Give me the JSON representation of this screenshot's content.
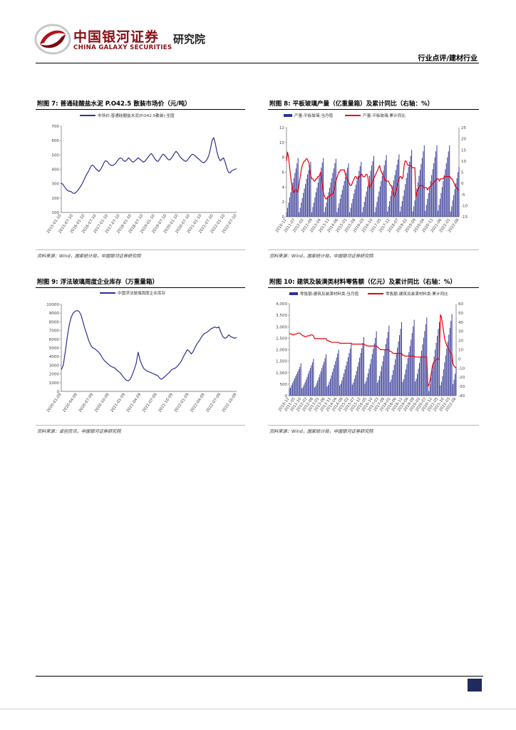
{
  "header": {
    "logo_cn": "中国银河证券",
    "logo_en": "CHINA GALAXY SECURITIES",
    "logo_sub": "研究院",
    "sector": "行业点评/建材行业"
  },
  "figures": [
    {
      "title": "附图 7: 普通硅酸盐水泥 P.O42.5 散装市场价（元/吨）",
      "legend": [
        "市场价:普通硅酸盐水泥(P.O42.5散装):全国"
      ],
      "source": "资料来源：Wind，国家统计局，中国银河证券研究院"
    },
    {
      "title": "附图 8: 平板玻璃产量（亿重量箱）及累计同比（右轴：%）",
      "legend": [
        "产量:平板玻璃:当月值",
        "产量:平板玻璃:累计同比"
      ],
      "source": "资料来源：Wind，国家统计局，中国银河证券研究院"
    },
    {
      "title": "附图 9: 浮法玻璃周度企业库存（万重量箱）",
      "legend": [
        "中国浮法玻璃周度企业库存"
      ],
      "source": "资料来源：卓创资讯，中国银河证券研究院"
    },
    {
      "title": "附图 10: 建筑及装潢类材料零售额（亿元）及累计同比（右轴：%）",
      "legend": [
        "零售额:建筑及装潢材料类:当月值",
        "零售额:建筑及装潢材料类:累计同比"
      ],
      "source": "资料来源：Wind，国家统计局，中国银河证券研究院"
    }
  ],
  "chart_data": [
    {
      "type": "line",
      "title": "",
      "x_ticks": [
        "2015-01-10",
        "2015-07-10",
        "2016-01-10",
        "2016-07-10",
        "2017-01-10",
        "2017-07-10",
        "2018-01-10",
        "2018-07-10",
        "2019-01-10",
        "2019-07-10",
        "2020-01-10",
        "2020-07-10",
        "2021-01-10",
        "2021-07-10",
        "2022-01-10",
        "2022-07-10"
      ],
      "ylim": [
        100,
        700
      ],
      "y_ticks": [
        "100",
        "200",
        "300",
        "400",
        "500",
        "600",
        "700"
      ],
      "series": [
        {
          "name": "市场价:普通硅酸盐水泥(P.O42.5散装):全国",
          "color": "#2e3192",
          "values": [
            305,
            295,
            278,
            262,
            250,
            248,
            245,
            235,
            232,
            240,
            252,
            268,
            285,
            305,
            330,
            355,
            375,
            395,
            420,
            430,
            420,
            405,
            395,
            385,
            400,
            420,
            445,
            460,
            455,
            440,
            430,
            425,
            430,
            440,
            455,
            470,
            480,
            475,
            460,
            455,
            465,
            480,
            470,
            455,
            450,
            460,
            470,
            480,
            470,
            460,
            450,
            455,
            470,
            485,
            500,
            510,
            495,
            475,
            460,
            455,
            470,
            490,
            505,
            500,
            485,
            470,
            465,
            475,
            490,
            510,
            525,
            515,
            495,
            480,
            470,
            460,
            455,
            465,
            480,
            495,
            505,
            500,
            490,
            480,
            470,
            460,
            450,
            445,
            455,
            470,
            495,
            540,
            600,
            620,
            580,
            520,
            480,
            460,
            470,
            480,
            450,
            410,
            380,
            375,
            390,
            395,
            400,
            405
          ]
        }
      ]
    },
    {
      "type": "bar",
      "title": "",
      "x_ticks": [
        "2010-12",
        "2011-07",
        "2012-02",
        "2012-09",
        "2013-04",
        "2013-11",
        "2014-06",
        "2015-01",
        "2015-08",
        "2016-03",
        "2016-10",
        "2017-05",
        "2017-12",
        "2018-07",
        "2019-02",
        "2019-09",
        "2020-04",
        "2020-11",
        "2021-06",
        "2022-01",
        "2022-08"
      ],
      "ylim": [
        0,
        12
      ],
      "y_ticks": [
        "0",
        "2",
        "4",
        "6",
        "8",
        "10",
        "12"
      ],
      "y2lim": [
        -15,
        25
      ],
      "y2_ticks": [
        "-15",
        "-10",
        "-5",
        "0",
        "5",
        "10",
        "15",
        "20",
        "25"
      ],
      "series": [
        {
          "name": "产量:平板玻璃:当月值",
          "color": "#2e3192",
          "axis": "left",
          "values": [
            0.6,
            1.2,
            1.9,
            2.6,
            3.3,
            4.0,
            4.6,
            5.2,
            5.9,
            6.5,
            7.2,
            7.9,
            0.6,
            1.2,
            1.9,
            2.5,
            3.2,
            3.8,
            4.4,
            5.1,
            5.7,
            6.3,
            6.9,
            7.4,
            0.6,
            1.3,
            1.9,
            2.6,
            3.3,
            3.9,
            4.6,
            5.3,
            5.9,
            6.6,
            7.3,
            7.9,
            0.6,
            1.3,
            1.9,
            2.6,
            3.3,
            3.9,
            4.6,
            5.2,
            5.9,
            6.5,
            7.2,
            7.8,
            0.6,
            1.2,
            1.8,
            2.4,
            3.0,
            3.6,
            4.2,
            4.8,
            5.4,
            6.0,
            6.6,
            7.2,
            0.6,
            1.2,
            1.8,
            2.4,
            3.1,
            3.7,
            4.3,
            4.9,
            5.5,
            6.2,
            6.8,
            7.4,
            0.6,
            1.3,
            2.0,
            2.7,
            3.4,
            4.1,
            4.8,
            5.5,
            6.2,
            6.9,
            7.5,
            8.2,
            0.6,
            1.3,
            2.0,
            2.7,
            3.4,
            4.1,
            4.8,
            5.5,
            6.2,
            6.9,
            7.6,
            8.3,
            0.7,
            1.4,
            2.1,
            2.8,
            3.5,
            4.2,
            4.9,
            5.6,
            6.3,
            7.0,
            7.7,
            8.4,
            0.7,
            1.4,
            2.1,
            2.8,
            3.6,
            4.4,
            5.2,
            5.9,
            6.7,
            7.4,
            8.2,
            9.0,
            0.7,
            1.4,
            2.2,
            3.0,
            3.8,
            4.6,
            5.5,
            6.3,
            7.1,
            7.9,
            8.8,
            9.6,
            0.8,
            1.6,
            2.4,
            3.2,
            4.0,
            4.8,
            5.6,
            6.4,
            7.2,
            8.0,
            8.8,
            9.6,
            0.8,
            1.6,
            2.4,
            3.2,
            4.0,
            4.8,
            5.6,
            6.4,
            7.2,
            8.0,
            8.8,
            9.6,
            0.7,
            1.4,
            2.2,
            2.9,
            3.7,
            4.5,
            5.2,
            6.0,
            6.7
          ]
        },
        {
          "name": "产量:平板玻璃:累计同比",
          "color": "#e8000b",
          "axis": "right",
          "values": [
            10,
            14,
            12,
            8,
            4,
            0,
            -2,
            -4,
            -4,
            -3,
            -3,
            -4,
            -3,
            0,
            3,
            6,
            8,
            9,
            10,
            10,
            11,
            11,
            10,
            9,
            5,
            3,
            2,
            2,
            1,
            1,
            2,
            2,
            3,
            3,
            4,
            5,
            2,
            -2,
            -5,
            -6,
            -7,
            -7,
            -6,
            -6,
            -6,
            -5,
            -5,
            -5,
            -4,
            -2,
            0,
            2,
            3,
            5,
            5,
            6,
            6,
            6,
            6,
            6,
            4,
            3,
            2,
            1,
            0,
            -1,
            -1,
            0,
            1,
            2,
            3,
            3,
            2,
            2,
            3,
            3,
            4,
            4,
            3,
            3,
            3,
            4,
            4,
            3,
            -1,
            -2,
            -1,
            0,
            1,
            2,
            3,
            4,
            5,
            6,
            7,
            8,
            6,
            5,
            4,
            3,
            2,
            1,
            1,
            1,
            1,
            0,
            -1,
            -1,
            -3,
            -5,
            -6,
            -5,
            -3,
            -1,
            1,
            2,
            3,
            3,
            2,
            3,
            8,
            10,
            10,
            9,
            8,
            8,
            8,
            8,
            7,
            7,
            7,
            7,
            -6,
            -4,
            -3,
            -2,
            -1,
            -1,
            -1,
            -1,
            -2,
            -2,
            -2,
            -2,
            -3,
            -2,
            -2,
            -1,
            -1,
            0,
            0,
            1,
            1,
            2,
            2,
            2,
            1,
            2,
            2,
            2,
            2,
            3,
            3,
            3,
            3,
            3,
            3,
            3,
            2,
            2,
            1,
            0,
            -1,
            -2,
            -2,
            -3,
            -3
          ]
        }
      ]
    },
    {
      "type": "line",
      "title": "",
      "x_ticks": [
        "2020-01-09",
        "2020-04-09",
        "2020-07-09",
        "2020-10-09",
        "2021-01-09",
        "2021-04-09",
        "2021-07-09",
        "2021-10-09",
        "2022-01-09",
        "2022-04-09",
        "2022-07-09",
        "2022-10-09"
      ],
      "ylim": [
        0,
        10000
      ],
      "y_ticks": [
        "0",
        "1000",
        "2000",
        "3000",
        "4000",
        "5000",
        "6000",
        "7000",
        "8000",
        "9000",
        "10000"
      ],
      "series": [
        {
          "name": "中国浮法玻璃周度企业库存",
          "color": "#2e3192",
          "values": [
            2500,
            3000,
            4500,
            6200,
            7600,
            8500,
            9000,
            9200,
            9300,
            9200,
            8800,
            8000,
            7200,
            6500,
            5800,
            5300,
            5000,
            4900,
            4700,
            4500,
            4200,
            3800,
            3500,
            3300,
            3100,
            2900,
            2800,
            2700,
            2500,
            2300,
            2100,
            1800,
            1500,
            1300,
            1200,
            1400,
            1900,
            2500,
            3200,
            4500,
            3600,
            3000,
            2600,
            2400,
            2300,
            2200,
            2100,
            2000,
            1900,
            1800,
            1500,
            1400,
            1600,
            1800,
            2000,
            2200,
            2500,
            2600,
            2700,
            2900,
            3200,
            3500,
            4000,
            4400,
            4800,
            4600,
            4300,
            4600,
            5100,
            5500,
            5800,
            6200,
            6500,
            6700,
            6800,
            7000,
            7200,
            7300,
            7400,
            7300,
            7400,
            6800,
            6300,
            6100,
            6200,
            6500,
            6300,
            6200,
            6100,
            6200
          ]
        }
      ]
    },
    {
      "type": "bar",
      "title": "",
      "x_ticks": [
        "2010-12",
        "2011-05",
        "2011-10",
        "2012-03",
        "2012-08",
        "2013-01",
        "2013-06",
        "2013-11",
        "2014-04",
        "2014-09",
        "2015-02",
        "2015-07",
        "2015-12",
        "2016-05",
        "2016-10",
        "2017-03",
        "2017-08",
        "2018-01",
        "2018-06",
        "2018-11",
        "2019-04",
        "2019-09",
        "2020-02",
        "2020-07",
        "2020-12",
        "2021-05",
        "2021-10",
        "2022-03",
        "2022-08"
      ],
      "ylim": [
        0,
        4000
      ],
      "y_ticks": [
        "0",
        "500",
        "1,000",
        "1,500",
        "2,000",
        "2,500",
        "3,000",
        "3,500",
        "4,000"
      ],
      "y2lim": [
        -40,
        60
      ],
      "y2_ticks": [
        "-40",
        "-30",
        "-20",
        "-10",
        "0",
        "10",
        "20",
        "30",
        "40",
        "50",
        "60"
      ],
      "series": [
        {
          "name": "零售额:建筑及装潢材料类:当月值",
          "color": "#2e3192",
          "axis": "left",
          "values": [
            300,
            350,
            450,
            550,
            650,
            750,
            850,
            950,
            1050,
            1150,
            1250,
            1400,
            320,
            380,
            480,
            580,
            700,
            820,
            950,
            1080,
            1200,
            1320,
            1450,
            1600,
            360,
            420,
            540,
            660,
            790,
            920,
            1060,
            1200,
            1340,
            1480,
            1630,
            1800,
            400,
            470,
            600,
            730,
            880,
            1030,
            1180,
            1340,
            1500,
            1660,
            1830,
            2000,
            440,
            520,
            660,
            810,
            970,
            1140,
            1310,
            1490,
            1670,
            1850,
            2040,
            2250,
            480,
            570,
            730,
            890,
            1070,
            1260,
            1450,
            1650,
            1860,
            2070,
            2290,
            2550,
            520,
            620,
            790,
            970,
            1170,
            1380,
            1590,
            1810,
            2040,
            2270,
            2510,
            2800,
            560,
            670,
            860,
            1060,
            1280,
            1500,
            1740,
            1990,
            2240,
            2500,
            2770,
            3050,
            590,
            700,
            900,
            1110,
            1340,
            1580,
            1830,
            2090,
            2360,
            2630,
            2910,
            3200,
            600,
            720,
            920,
            1140,
            1380,
            1630,
            1890,
            2160,
            2440,
            2720,
            3010,
            3300,
            620,
            740,
            950,
            1170,
            1420,
            1680,
            1950,
            2230,
            2520,
            2810,
            3100,
            3400,
            400,
            200,
            500,
            800,
            1100,
            1400,
            1700,
            2000,
            2300,
            2600,
            2900,
            3200,
            450,
            600,
            850,
            1150,
            1450,
            1750,
            2050,
            2350,
            2650,
            2950,
            3250,
            3550,
            500,
            700,
            950,
            1250
          ]
        },
        {
          "name": "零售额:建筑及装潢材料类:累计同比",
          "color": "#e8000b",
          "axis": "right",
          "values": [
            28,
            27,
            27,
            26,
            26,
            27,
            27,
            27,
            28,
            28,
            28,
            27,
            26,
            25,
            25,
            24,
            24,
            25,
            25,
            25,
            26,
            26,
            26,
            25,
            22,
            22,
            22,
            22,
            22,
            22,
            22,
            22,
            22,
            22,
            22,
            22,
            20,
            20,
            19,
            19,
            18,
            18,
            18,
            18,
            18,
            18,
            18,
            18,
            17,
            17,
            17,
            17,
            17,
            17,
            17,
            17,
            17,
            17,
            17,
            17,
            16,
            16,
            16,
            16,
            16,
            16,
            16,
            16,
            16,
            16,
            16,
            16,
            15,
            15,
            14,
            14,
            14,
            14,
            14,
            14,
            14,
            14,
            14,
            14,
            13,
            12,
            11,
            10,
            10,
            10,
            10,
            10,
            10,
            10,
            10,
            10,
            8,
            8,
            7,
            6,
            6,
            6,
            6,
            6,
            6,
            6,
            6,
            6,
            4,
            4,
            3,
            3,
            3,
            3,
            3,
            3,
            3,
            3,
            3,
            3,
            2,
            2,
            2,
            2,
            2,
            2,
            2,
            2,
            2,
            2,
            2,
            2,
            -30,
            -28,
            -24,
            -18,
            -10,
            -5,
            -3,
            -2,
            -1,
            0,
            0,
            -1,
            48,
            45,
            38,
            30,
            22,
            18,
            15,
            12,
            10,
            8,
            6,
            5,
            -5,
            -8,
            -9,
            -10
          ]
        }
      ]
    }
  ]
}
